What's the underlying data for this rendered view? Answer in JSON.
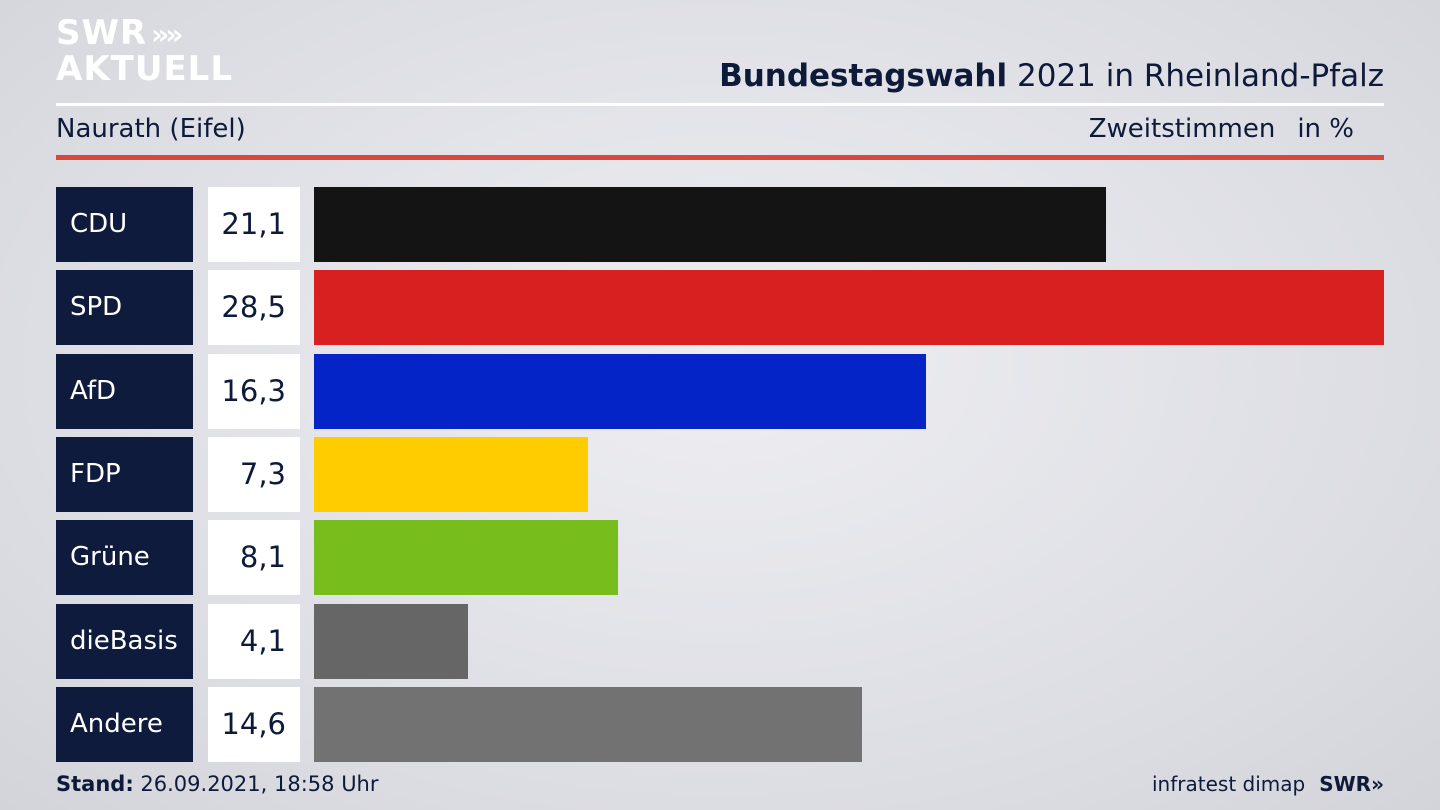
{
  "logo": {
    "line1": "SWR",
    "arrows": "»",
    "line2": "AKTUELL"
  },
  "header": {
    "title_bold": "Bundestagswahl",
    "title_rest": "2021 in Rheinland-Pfalz"
  },
  "subheader": {
    "location": "Naurath (Eifel)",
    "measure": "Zweitstimmen",
    "unit": "in %"
  },
  "footer": {
    "stand_label": "Stand:",
    "stand_value": "26.09.2021, 18:58 Uhr",
    "source": "infratest dimap",
    "brand": "SWR»"
  },
  "chart_data": {
    "type": "bar",
    "orientation": "horizontal",
    "title": "Bundestagswahl 2021 in Rheinland-Pfalz",
    "subtitle": "Naurath (Eifel)",
    "xlabel": "Zweitstimmen in %",
    "ylabel": "",
    "xlim": [
      0,
      28.5
    ],
    "grid": false,
    "categories": [
      "CDU",
      "SPD",
      "AfD",
      "FDP",
      "Grüne",
      "dieBasis",
      "Andere"
    ],
    "value_labels": [
      "21,1",
      "28,5",
      "16,3",
      "7,3",
      "8,1",
      "4,1",
      "14,6"
    ],
    "values": [
      21.1,
      28.5,
      16.3,
      7.3,
      8.1,
      4.1,
      14.6
    ],
    "colors": [
      "#141414",
      "#d92020",
      "#0524c8",
      "#ffcc00",
      "#77be1d",
      "#666666",
      "#727272"
    ]
  }
}
